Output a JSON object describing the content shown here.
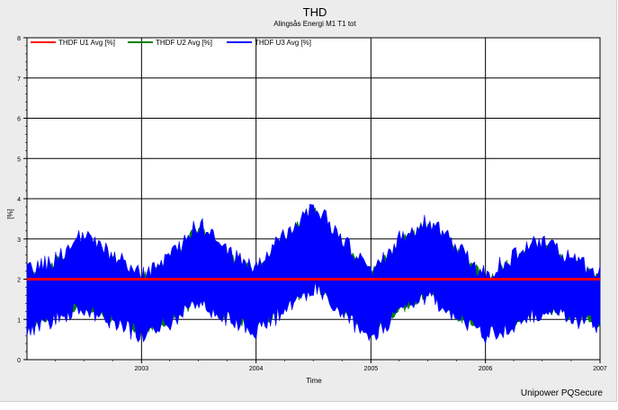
{
  "chart_data": {
    "type": "line",
    "title": "THD",
    "subtitle": "Alingsås Energi M1 T1 tot",
    "xlabel": "Time",
    "ylabel": "[%]",
    "ylim": [
      0,
      8
    ],
    "yticks": [
      "0",
      "1",
      "2",
      "3",
      "4",
      "5",
      "6",
      "7",
      "8"
    ],
    "x_start": "2002-01-01",
    "x_end": "2007-01-01",
    "xticks": [
      {
        "label": "2003",
        "date": "2003-01-01"
      },
      {
        "label": "2004",
        "date": "2004-01-01"
      },
      {
        "label": "2005",
        "date": "2005-01-01"
      },
      {
        "label": "2006",
        "date": "2006-01-01"
      },
      {
        "label": "2007",
        "date": "2007-01-01"
      }
    ],
    "grid": true,
    "legend_position": "top",
    "series": [
      {
        "name": "THDF U1 Avg [%]",
        "color": "#ff0000",
        "points": [
          {
            "date": "2002-01-01",
            "value": 2.0
          },
          {
            "date": "2007-01-01",
            "value": 2.0
          }
        ]
      },
      {
        "name": "THDF U2 Avg [%]",
        "color": "#008000",
        "envelope": [
          {
            "date": "2002-01-01",
            "upper": 2.0,
            "lower": 1.0
          },
          {
            "date": "2002-04-01",
            "upper": 2.3,
            "lower": 1.2
          },
          {
            "date": "2002-07-01",
            "upper": 2.9,
            "lower": 1.5
          },
          {
            "date": "2002-10-01",
            "upper": 2.4,
            "lower": 1.1
          },
          {
            "date": "2003-01-01",
            "upper": 1.9,
            "lower": 0.8
          },
          {
            "date": "2003-04-01",
            "upper": 2.3,
            "lower": 1.1
          },
          {
            "date": "2003-07-01",
            "upper": 3.2,
            "lower": 1.6
          },
          {
            "date": "2003-10-01",
            "upper": 2.5,
            "lower": 1.2
          },
          {
            "date": "2004-01-01",
            "upper": 2.1,
            "lower": 0.9
          },
          {
            "date": "2004-04-01",
            "upper": 2.9,
            "lower": 1.4
          },
          {
            "date": "2004-07-01",
            "upper": 3.6,
            "lower": 2.0
          },
          {
            "date": "2004-10-01",
            "upper": 2.8,
            "lower": 1.3
          },
          {
            "date": "2005-01-01",
            "upper": 2.0,
            "lower": 0.8
          },
          {
            "date": "2005-04-01",
            "upper": 2.8,
            "lower": 1.3
          },
          {
            "date": "2005-07-01",
            "upper": 3.3,
            "lower": 1.8
          },
          {
            "date": "2005-10-01",
            "upper": 2.6,
            "lower": 1.2
          },
          {
            "date": "2006-01-01",
            "upper": 1.9,
            "lower": 0.8
          },
          {
            "date": "2006-04-01",
            "upper": 2.4,
            "lower": 1.0
          },
          {
            "date": "2006-07-01",
            "upper": 2.8,
            "lower": 1.4
          },
          {
            "date": "2006-10-01",
            "upper": 2.3,
            "lower": 1.2
          },
          {
            "date": "2007-01-01",
            "upper": 2.0,
            "lower": 1.0
          }
        ]
      },
      {
        "name": "THDF U3 Avg [%]",
        "color": "#0000ff",
        "envelope": [
          {
            "date": "2002-01-01",
            "upper": 2.1,
            "lower": 0.8
          },
          {
            "date": "2002-04-01",
            "upper": 2.4,
            "lower": 1.1
          },
          {
            "date": "2002-07-01",
            "upper": 3.0,
            "lower": 1.4
          },
          {
            "date": "2002-10-01",
            "upper": 2.5,
            "lower": 1.0
          },
          {
            "date": "2003-01-01",
            "upper": 2.0,
            "lower": 0.7
          },
          {
            "date": "2003-04-01",
            "upper": 2.4,
            "lower": 1.0
          },
          {
            "date": "2003-07-01",
            "upper": 3.3,
            "lower": 1.5
          },
          {
            "date": "2003-10-01",
            "upper": 2.6,
            "lower": 1.1
          },
          {
            "date": "2004-01-01",
            "upper": 2.2,
            "lower": 0.8
          },
          {
            "date": "2004-04-01",
            "upper": 3.0,
            "lower": 1.3
          },
          {
            "date": "2004-07-01",
            "upper": 3.8,
            "lower": 1.9
          },
          {
            "date": "2004-10-01",
            "upper": 2.9,
            "lower": 1.2
          },
          {
            "date": "2005-01-01",
            "upper": 2.1,
            "lower": 0.7
          },
          {
            "date": "2005-04-01",
            "upper": 2.9,
            "lower": 1.2
          },
          {
            "date": "2005-07-01",
            "upper": 3.4,
            "lower": 1.7
          },
          {
            "date": "2005-10-01",
            "upper": 2.7,
            "lower": 1.1
          },
          {
            "date": "2006-01-01",
            "upper": 2.0,
            "lower": 0.7
          },
          {
            "date": "2006-04-01",
            "upper": 2.5,
            "lower": 0.9
          },
          {
            "date": "2006-07-01",
            "upper": 2.9,
            "lower": 1.3
          },
          {
            "date": "2006-10-01",
            "upper": 2.4,
            "lower": 1.1
          },
          {
            "date": "2007-01-01",
            "upper": 2.1,
            "lower": 0.9
          }
        ]
      }
    ]
  },
  "credit": "Unipower PQSecure"
}
